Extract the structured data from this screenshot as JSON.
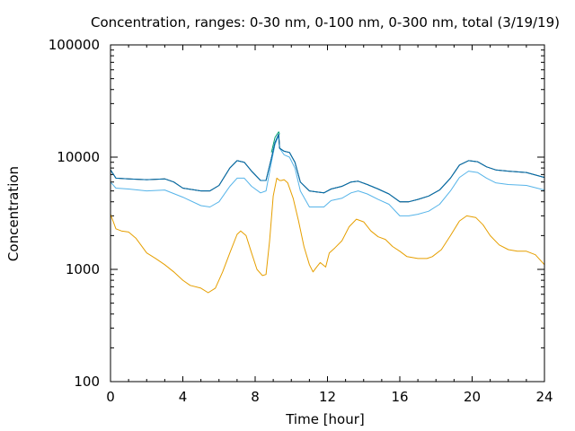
{
  "chart_data": {
    "type": "line",
    "title": "Concentration, ranges: 0-30 nm, 0-100 nm, 0-300 nm, total (3/19/19)",
    "xlabel": "Time [hour]",
    "ylabel": "Concentration",
    "xlim": [
      0,
      24
    ],
    "ylim": [
      100,
      100000
    ],
    "yscale": "log",
    "x_ticks": [
      0,
      4,
      8,
      12,
      16,
      20,
      24
    ],
    "y_ticks": [
      100,
      1000,
      10000,
      100000
    ],
    "x_tick_labels": [
      "0",
      "4",
      "8",
      "12",
      "16",
      "20",
      "24"
    ],
    "y_tick_labels": [
      "100",
      "1000",
      "10000",
      "100000"
    ],
    "grid": false,
    "legend": "none",
    "series": [
      {
        "color": "#e69f00",
        "points": [
          [
            0,
            3100
          ],
          [
            0.3,
            2300
          ],
          [
            0.6,
            2200
          ],
          [
            1,
            2150
          ],
          [
            1.4,
            1900
          ],
          [
            2,
            1400
          ],
          [
            2.5,
            1250
          ],
          [
            3,
            1100
          ],
          [
            3.5,
            950
          ],
          [
            4,
            800
          ],
          [
            4.4,
            720
          ],
          [
            5,
            680
          ],
          [
            5.4,
            620
          ],
          [
            5.8,
            680
          ],
          [
            6.2,
            950
          ],
          [
            6.6,
            1400
          ],
          [
            7,
            2050
          ],
          [
            7.2,
            2200
          ],
          [
            7.5,
            2000
          ],
          [
            7.8,
            1400
          ],
          [
            8.1,
            1000
          ],
          [
            8.4,
            880
          ],
          [
            8.6,
            900
          ],
          [
            8.8,
            1800
          ],
          [
            9.0,
            4500
          ],
          [
            9.2,
            6500
          ],
          [
            9.35,
            6200
          ],
          [
            9.45,
            6200
          ],
          [
            9.6,
            6300
          ],
          [
            9.8,
            5900
          ],
          [
            10.1,
            4300
          ],
          [
            10.4,
            2700
          ],
          [
            10.7,
            1600
          ],
          [
            11,
            1100
          ],
          [
            11.2,
            950
          ],
          [
            11.4,
            1050
          ],
          [
            11.6,
            1150
          ],
          [
            11.9,
            1050
          ],
          [
            12.1,
            1400
          ],
          [
            12.4,
            1550
          ],
          [
            12.8,
            1800
          ],
          [
            13.2,
            2400
          ],
          [
            13.6,
            2800
          ],
          [
            14,
            2650
          ],
          [
            14.4,
            2200
          ],
          [
            14.8,
            1950
          ],
          [
            15.2,
            1850
          ],
          [
            15.6,
            1600
          ],
          [
            16,
            1450
          ],
          [
            16.4,
            1300
          ],
          [
            17,
            1250
          ],
          [
            17.5,
            1250
          ],
          [
            17.8,
            1300
          ],
          [
            18.3,
            1500
          ],
          [
            18.8,
            2000
          ],
          [
            19.3,
            2700
          ],
          [
            19.7,
            3000
          ],
          [
            20.2,
            2900
          ],
          [
            20.6,
            2500
          ],
          [
            21,
            2000
          ],
          [
            21.5,
            1650
          ],
          [
            22,
            1500
          ],
          [
            22.5,
            1450
          ],
          [
            23,
            1450
          ],
          [
            23.5,
            1350
          ],
          [
            24,
            1100
          ]
        ]
      },
      {
        "color": "#56b4e9",
        "points": [
          [
            0,
            6000
          ],
          [
            0.3,
            5300
          ],
          [
            1,
            5200
          ],
          [
            2,
            5000
          ],
          [
            3,
            5100
          ],
          [
            4,
            4400
          ],
          [
            5,
            3700
          ],
          [
            5.5,
            3600
          ],
          [
            6,
            4000
          ],
          [
            6.6,
            5500
          ],
          [
            7,
            6500
          ],
          [
            7.4,
            6500
          ],
          [
            7.8,
            5500
          ],
          [
            8.3,
            4800
          ],
          [
            8.6,
            5000
          ],
          [
            8.9,
            9000
          ],
          [
            9.1,
            13000
          ],
          [
            9.3,
            15500
          ],
          [
            9.35,
            12000
          ],
          [
            9.6,
            10500
          ],
          [
            9.9,
            10000
          ],
          [
            10.2,
            8000
          ],
          [
            10.5,
            5000
          ],
          [
            11,
            3600
          ],
          [
            11.4,
            3600
          ],
          [
            11.8,
            3600
          ],
          [
            12.2,
            4100
          ],
          [
            12.8,
            4300
          ],
          [
            13.3,
            4800
          ],
          [
            13.7,
            5000
          ],
          [
            14.2,
            4700
          ],
          [
            14.8,
            4200
          ],
          [
            15.4,
            3800
          ],
          [
            16,
            3000
          ],
          [
            16.5,
            3000
          ],
          [
            17,
            3100
          ],
          [
            17.6,
            3300
          ],
          [
            18.2,
            3800
          ],
          [
            18.8,
            5000
          ],
          [
            19.3,
            6600
          ],
          [
            19.8,
            7500
          ],
          [
            20.3,
            7300
          ],
          [
            20.8,
            6500
          ],
          [
            21.3,
            5900
          ],
          [
            22,
            5700
          ],
          [
            23,
            5600
          ],
          [
            24,
            5100
          ]
        ]
      },
      {
        "color": "#009e73",
        "points": [
          [
            8.9,
            11000
          ],
          [
            9.1,
            15000
          ],
          [
            9.3,
            16800
          ],
          [
            9.35,
            16000
          ]
        ]
      },
      {
        "color": "#000000",
        "points": [
          [
            0,
            7700
          ],
          [
            0.3,
            6500
          ],
          [
            1,
            6400
          ],
          [
            2,
            6300
          ],
          [
            3,
            6400
          ],
          [
            3.5,
            6000
          ],
          [
            4,
            5300
          ],
          [
            5,
            5000
          ],
          [
            5.5,
            5000
          ],
          [
            6,
            5600
          ],
          [
            6.6,
            8000
          ],
          [
            7,
            9300
          ],
          [
            7.4,
            9000
          ],
          [
            7.8,
            7500
          ],
          [
            8.3,
            6200
          ],
          [
            8.6,
            6200
          ],
          [
            8.9,
            9800
          ],
          [
            9.1,
            13500
          ],
          [
            9.3,
            16000
          ],
          [
            9.35,
            12000
          ],
          [
            9.6,
            11300
          ],
          [
            9.9,
            11000
          ],
          [
            10.2,
            9000
          ],
          [
            10.5,
            6000
          ],
          [
            11,
            5000
          ],
          [
            11.4,
            4900
          ],
          [
            11.8,
            4800
          ],
          [
            12.2,
            5200
          ],
          [
            12.8,
            5500
          ],
          [
            13.3,
            6000
          ],
          [
            13.7,
            6100
          ],
          [
            14.2,
            5700
          ],
          [
            14.8,
            5200
          ],
          [
            15.4,
            4700
          ],
          [
            16,
            4000
          ],
          [
            16.5,
            4000
          ],
          [
            17,
            4200
          ],
          [
            17.6,
            4500
          ],
          [
            18.2,
            5100
          ],
          [
            18.8,
            6500
          ],
          [
            19.3,
            8500
          ],
          [
            19.8,
            9300
          ],
          [
            20.3,
            9100
          ],
          [
            20.8,
            8200
          ],
          [
            21.3,
            7700
          ],
          [
            22,
            7500
          ],
          [
            23,
            7300
          ],
          [
            24,
            6600
          ]
        ]
      },
      {
        "color": "#0072b2",
        "points": [
          [
            0,
            7700
          ],
          [
            0.3,
            6500
          ],
          [
            1,
            6400
          ],
          [
            2,
            6300
          ],
          [
            3,
            6400
          ],
          [
            3.5,
            6000
          ],
          [
            4,
            5300
          ],
          [
            5,
            5000
          ],
          [
            5.5,
            5000
          ],
          [
            6,
            5600
          ],
          [
            6.6,
            8000
          ],
          [
            7,
            9300
          ],
          [
            7.4,
            9000
          ],
          [
            7.8,
            7500
          ],
          [
            8.3,
            6200
          ],
          [
            8.6,
            6200
          ],
          [
            8.9,
            9800
          ],
          [
            9.1,
            13500
          ],
          [
            9.3,
            16000
          ],
          [
            9.35,
            12000
          ],
          [
            9.6,
            11300
          ],
          [
            9.9,
            11000
          ],
          [
            10.2,
            9000
          ],
          [
            10.5,
            6000
          ],
          [
            11,
            5000
          ],
          [
            11.4,
            4900
          ],
          [
            11.8,
            4800
          ],
          [
            12.2,
            5200
          ],
          [
            12.8,
            5500
          ],
          [
            13.3,
            6000
          ],
          [
            13.7,
            6100
          ],
          [
            14.2,
            5700
          ],
          [
            14.8,
            5200
          ],
          [
            15.4,
            4700
          ],
          [
            16,
            4000
          ],
          [
            16.5,
            4000
          ],
          [
            17,
            4200
          ],
          [
            17.6,
            4500
          ],
          [
            18.2,
            5100
          ],
          [
            18.8,
            6500
          ],
          [
            19.3,
            8500
          ],
          [
            19.8,
            9300
          ],
          [
            20.3,
            9100
          ],
          [
            20.8,
            8200
          ],
          [
            21.3,
            7700
          ],
          [
            22,
            7500
          ],
          [
            23,
            7300
          ],
          [
            24,
            6600
          ]
        ]
      }
    ]
  }
}
